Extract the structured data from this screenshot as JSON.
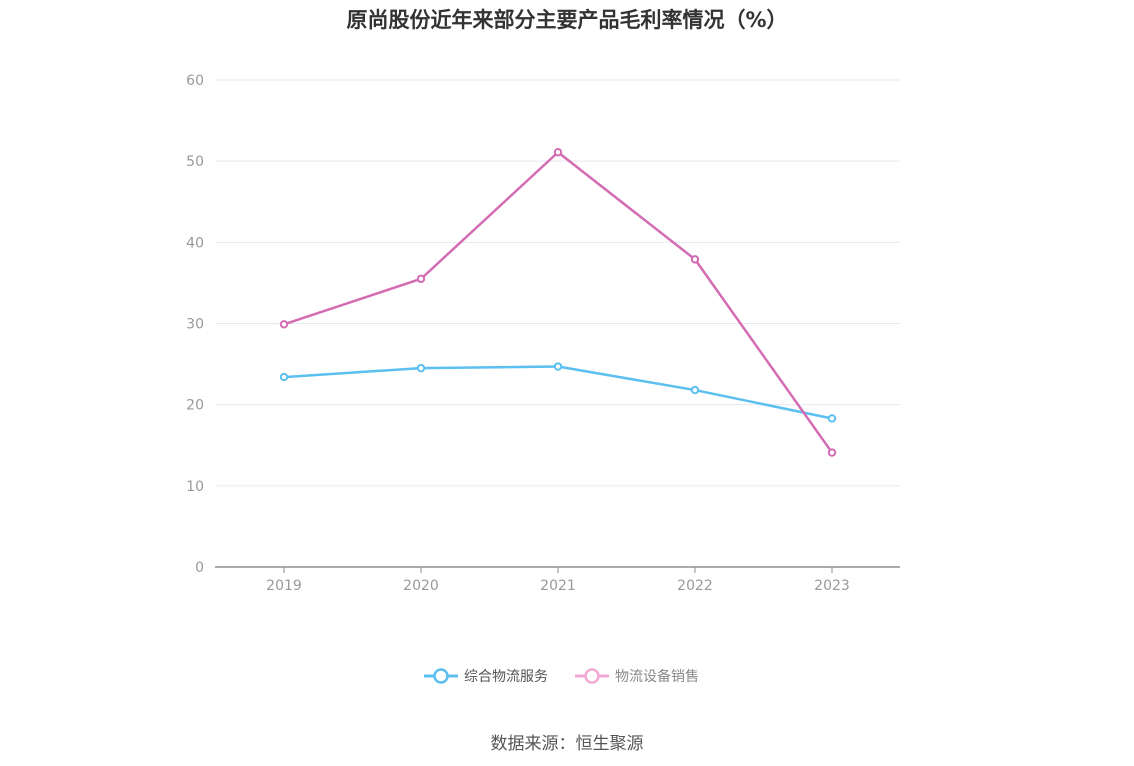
{
  "chart_data": {
    "type": "line",
    "title": "原尚股份近年来部分主要产品毛利率情况（%）",
    "categories": [
      "2019",
      "2020",
      "2021",
      "2022",
      "2023"
    ],
    "series": [
      {
        "name": "综合物流服务",
        "color": "#5bbff0",
        "values": [
          23.4,
          24.5,
          24.7,
          21.8,
          18.3
        ]
      },
      {
        "name": "物流设备销售",
        "color": "#d46cb4",
        "values": [
          29.9,
          35.5,
          51.1,
          37.9,
          14.1
        ]
      }
    ],
    "ylim": [
      0,
      60
    ],
    "yticks": [
      0,
      10,
      20,
      30,
      40,
      50,
      60
    ],
    "grid": true,
    "legend_position": "bottom-center"
  },
  "source": "数据来源：恒生聚源"
}
